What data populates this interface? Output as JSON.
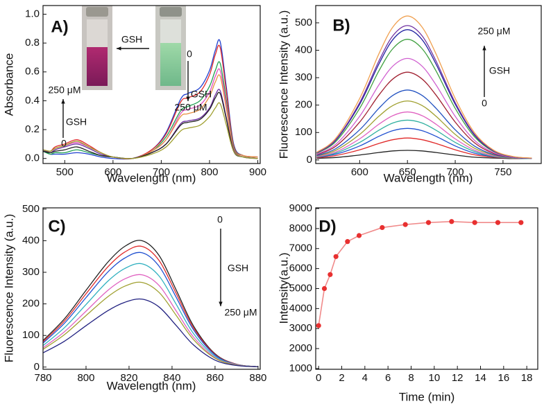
{
  "chart_data": [
    {
      "type": "line",
      "smooth": true,
      "panel": "A)",
      "xlabel": "Wavelength (nm)",
      "ylabel": "Absorbance",
      "annotations": [
        "GSH",
        "0",
        "GSH",
        "250 μM",
        "250 μM",
        "GSH",
        "0"
      ],
      "xlim": [
        455,
        905
      ],
      "xticks": [
        500,
        600,
        700,
        800,
        900
      ],
      "ylim": [
        -0.035,
        1.06
      ],
      "yticks": [
        {
          "value": 0,
          "label": "0.0"
        },
        0.2,
        0.4,
        0.6,
        0.8,
        {
          "value": 1,
          "label": "1.0"
        }
      ],
      "x": [
        455,
        470,
        480,
        500,
        525,
        550,
        575,
        600,
        640,
        680,
        710,
        740,
        755,
        780,
        800,
        812,
        822,
        835,
        850,
        870,
        900
      ],
      "series": [
        {
          "color": "#2040d0",
          "values": [
            0.05,
            0.03,
            0.03,
            0.03,
            0.04,
            0.03,
            0.01,
            0,
            0,
            0.06,
            0.18,
            0.41,
            0.45,
            0.49,
            0.61,
            0.75,
            0.81,
            0.49,
            0.1,
            0.02,
            0.01
          ]
        },
        {
          "color": "#e02828",
          "values": [
            0.06,
            0.05,
            0.08,
            0.1,
            0.13,
            0.09,
            0.04,
            0.01,
            0,
            0.06,
            0.17,
            0.39,
            0.42,
            0.46,
            0.58,
            0.72,
            0.77,
            0.46,
            0.09,
            0.02,
            0.01
          ]
        },
        {
          "color": "#20a050",
          "values": [
            0.05,
            0.03,
            0.04,
            0.04,
            0.06,
            0.04,
            0.02,
            0.01,
            0,
            0.05,
            0.15,
            0.33,
            0.36,
            0.4,
            0.5,
            0.61,
            0.66,
            0.4,
            0.08,
            0.02,
            0.01
          ]
        },
        {
          "color": "#e050c0",
          "values": [
            0.06,
            0.05,
            0.07,
            0.09,
            0.11,
            0.08,
            0.04,
            0.01,
            0,
            0.05,
            0.13,
            0.31,
            0.34,
            0.37,
            0.46,
            0.57,
            0.61,
            0.37,
            0.07,
            0.02,
            0.01
          ]
        },
        {
          "color": "#e89040",
          "values": [
            0.06,
            0.05,
            0.07,
            0.09,
            0.12,
            0.08,
            0.04,
            0.01,
            0,
            0.05,
            0.13,
            0.29,
            0.31,
            0.34,
            0.43,
            0.53,
            0.57,
            0.34,
            0.07,
            0.02,
            0.01
          ]
        },
        {
          "color": "#6a2aa0",
          "values": [
            0.06,
            0.04,
            0.06,
            0.08,
            0.1,
            0.07,
            0.03,
            0.01,
            0,
            0.04,
            0.1,
            0.24,
            0.26,
            0.28,
            0.35,
            0.44,
            0.47,
            0.28,
            0.06,
            0.01,
            0
          ]
        },
        {
          "color": "#202020",
          "values": [
            0.05,
            0.04,
            0.05,
            0.06,
            0.08,
            0.05,
            0.02,
            0.01,
            0,
            0.04,
            0.1,
            0.23,
            0.25,
            0.27,
            0.34,
            0.42,
            0.45,
            0.27,
            0.05,
            0.01,
            0
          ]
        },
        {
          "color": "#a0a030",
          "values": [
            0.06,
            0.05,
            0.07,
            0.09,
            0.12,
            0.08,
            0.04,
            0.01,
            0,
            0.03,
            0.08,
            0.19,
            0.21,
            0.23,
            0.29,
            0.35,
            0.38,
            0.23,
            0.05,
            0.01,
            0
          ]
        }
      ]
    },
    {
      "type": "line",
      "smooth": true,
      "panel": "B)",
      "xlabel": "Wavelength (nm)",
      "ylabel": "Fluorescence Intensity (a.u.)",
      "annotations": [
        "250 μM",
        "GSH",
        "0"
      ],
      "xlim": [
        554,
        790
      ],
      "xticks": [
        600,
        650,
        700,
        750
      ],
      "ylim": [
        -13,
        563
      ],
      "yticks": [
        0,
        100,
        200,
        300,
        400,
        500
      ],
      "x": [
        555,
        575,
        600,
        620,
        635,
        650,
        665,
        680,
        700,
        720,
        740,
        760,
        780
      ],
      "series": [
        {
          "color": "#202020",
          "values": [
            6,
            9,
            18,
            27,
            33,
            35,
            33,
            27,
            18,
            10,
            7,
            5,
            5
          ]
        },
        {
          "color": "#e02828",
          "values": [
            8,
            16,
            37,
            60,
            74,
            80,
            74,
            60,
            37,
            19,
            10,
            6,
            5
          ]
        },
        {
          "color": "#2050d0",
          "values": [
            10,
            21,
            51,
            86,
            107,
            115,
            107,
            86,
            51,
            25,
            12,
            7,
            5
          ]
        },
        {
          "color": "#30b0a0",
          "values": [
            11,
            25,
            64,
            108,
            135,
            145,
            135,
            108,
            64,
            31,
            13,
            7,
            5
          ]
        },
        {
          "color": "#e060c0",
          "values": [
            12,
            29,
            77,
            130,
            162,
            175,
            162,
            130,
            77,
            36,
            15,
            8,
            6
          ]
        },
        {
          "color": "#a0a030",
          "values": [
            14,
            35,
            93,
            159,
            199,
            215,
            199,
            159,
            93,
            43,
            18,
            8,
            6
          ]
        },
        {
          "color": "#2050c0",
          "values": [
            16,
            41,
            110,
            188,
            236,
            255,
            236,
            188,
            110,
            51,
            20,
            9,
            6
          ]
        },
        {
          "color": "#a02030",
          "values": [
            19,
            50,
            138,
            236,
            296,
            320,
            296,
            236,
            138,
            63,
            24,
            10,
            6
          ]
        },
        {
          "color": "#d060d0",
          "values": [
            21,
            57,
            159,
            273,
            343,
            370,
            343,
            273,
            159,
            72,
            27,
            10,
            6
          ]
        },
        {
          "color": "#40a040",
          "values": [
            24,
            67,
            188,
            324,
            407,
            440,
            407,
            324,
            188,
            85,
            31,
            12,
            6
          ]
        },
        {
          "color": "#2020a0",
          "values": [
            26,
            72,
            203,
            349,
            440,
            475,
            440,
            349,
            203,
            91,
            33,
            12,
            6
          ]
        },
        {
          "color": "#7030a0",
          "values": [
            26,
            74,
            209,
            360,
            454,
            490,
            454,
            360,
            209,
            94,
            34,
            12,
            6
          ]
        },
        {
          "color": "#f0a050",
          "values": [
            28,
            79,
            224,
            386,
            486,
            525,
            486,
            386,
            224,
            100,
            36,
            13,
            7
          ]
        }
      ]
    },
    {
      "type": "line",
      "smooth": true,
      "panel": "C)",
      "xlabel": "Wavelength (nm)",
      "ylabel": "Fluorescence Intensity (a.u.)",
      "annotations": [
        "0",
        "GSH",
        "250 μM"
      ],
      "xlim": [
        780,
        881
      ],
      "xticks": [
        780,
        800,
        820,
        840,
        860,
        880
      ],
      "ylim": [
        -7,
        504
      ],
      "yticks": [
        0,
        100,
        200,
        300,
        400,
        500
      ],
      "x": [
        780,
        790,
        800,
        810,
        818,
        826,
        834,
        842,
        850,
        860,
        870,
        880
      ],
      "series": [
        {
          "color": "#202020",
          "values": [
            84,
            153,
            243,
            331,
            382,
            400,
            353,
            243,
            130,
            42,
            9,
            1
          ]
        },
        {
          "color": "#e02828",
          "values": [
            80,
            146,
            232,
            316,
            364,
            382,
            337,
            232,
            124,
            40,
            9,
            1
          ]
        },
        {
          "color": "#2050d0",
          "values": [
            76,
            139,
            220,
            300,
            345,
            362,
            319,
            220,
            118,
            38,
            8,
            1
          ]
        },
        {
          "color": "#30b0c0",
          "values": [
            68,
            125,
            198,
            271,
            312,
            327,
            288,
            198,
            106,
            34,
            8,
            1
          ]
        },
        {
          "color": "#e060c0",
          "values": [
            61,
            112,
            177,
            242,
            279,
            292,
            258,
            177,
            95,
            30,
            7,
            1
          ]
        },
        {
          "color": "#a0a030",
          "values": [
            56,
            103,
            163,
            222,
            256,
            268,
            236,
            163,
            87,
            28,
            6,
            1
          ]
        },
        {
          "color": "#202080",
          "values": [
            45,
            82,
            131,
            178,
            205,
            215,
            190,
            131,
            70,
            22,
            5,
            1
          ]
        }
      ]
    },
    {
      "type": "line",
      "smooth": false,
      "markers": true,
      "panel": "D)",
      "xlabel": "Time (min)",
      "ylabel": "Intensity(a.u.)",
      "annotations": [],
      "xlim": [
        -0.25,
        18.95
      ],
      "xticks": [
        0,
        2,
        4,
        6,
        8,
        10,
        12,
        14,
        16,
        18
      ],
      "ylim": [
        965,
        9035
      ],
      "yticks": [
        1000,
        2000,
        3000,
        4000,
        5000,
        6000,
        7000,
        8000,
        9000
      ],
      "x": [
        0,
        0.5,
        1,
        1.5,
        2.5,
        3.5,
        5.5,
        7.5,
        9.5,
        11.5,
        13.5,
        15.5,
        17.5
      ],
      "series": [
        {
          "color": "#e83030",
          "line_color": "#f08a8a",
          "values": [
            3150,
            5000,
            5700,
            6600,
            7350,
            7650,
            8050,
            8200,
            8300,
            8350,
            8300,
            8300,
            8300
          ]
        }
      ]
    }
  ]
}
